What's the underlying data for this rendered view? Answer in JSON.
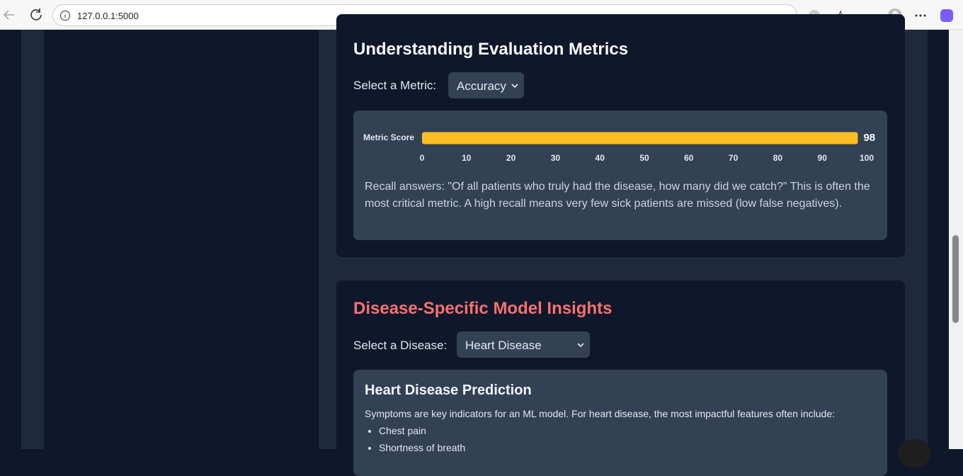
{
  "browser": {
    "url": "127.0.0.1:5000"
  },
  "metrics_section": {
    "title": "Understanding Evaluation Metrics",
    "select_label": "Select a Metric:",
    "selected_metric": "Accuracy",
    "description": "Recall answers: \"Of all patients who truly had the disease, how many did we catch?\" This is often the most critical metric. A high recall means very few sick patients are missed (low false negatives)."
  },
  "chart_data": {
    "type": "bar",
    "orientation": "horizontal",
    "categories": [
      "Metric Score"
    ],
    "values": [
      98
    ],
    "color": "#fbbf24",
    "xlim": [
      0,
      100
    ],
    "xticks": [
      0,
      10,
      20,
      30,
      40,
      50,
      60,
      70,
      80,
      90,
      100
    ],
    "grid": false
  },
  "disease_section": {
    "title": "Disease-Specific Model Insights",
    "select_label": "Select a Disease:",
    "selected_disease": "Heart Disease",
    "panel": {
      "heading": "Heart Disease Prediction",
      "intro": "Symptoms are key indicators for an ML model. For heart disease, the most impactful features often include:",
      "items": [
        "Chest pain",
        "Shortness of breath"
      ]
    }
  }
}
